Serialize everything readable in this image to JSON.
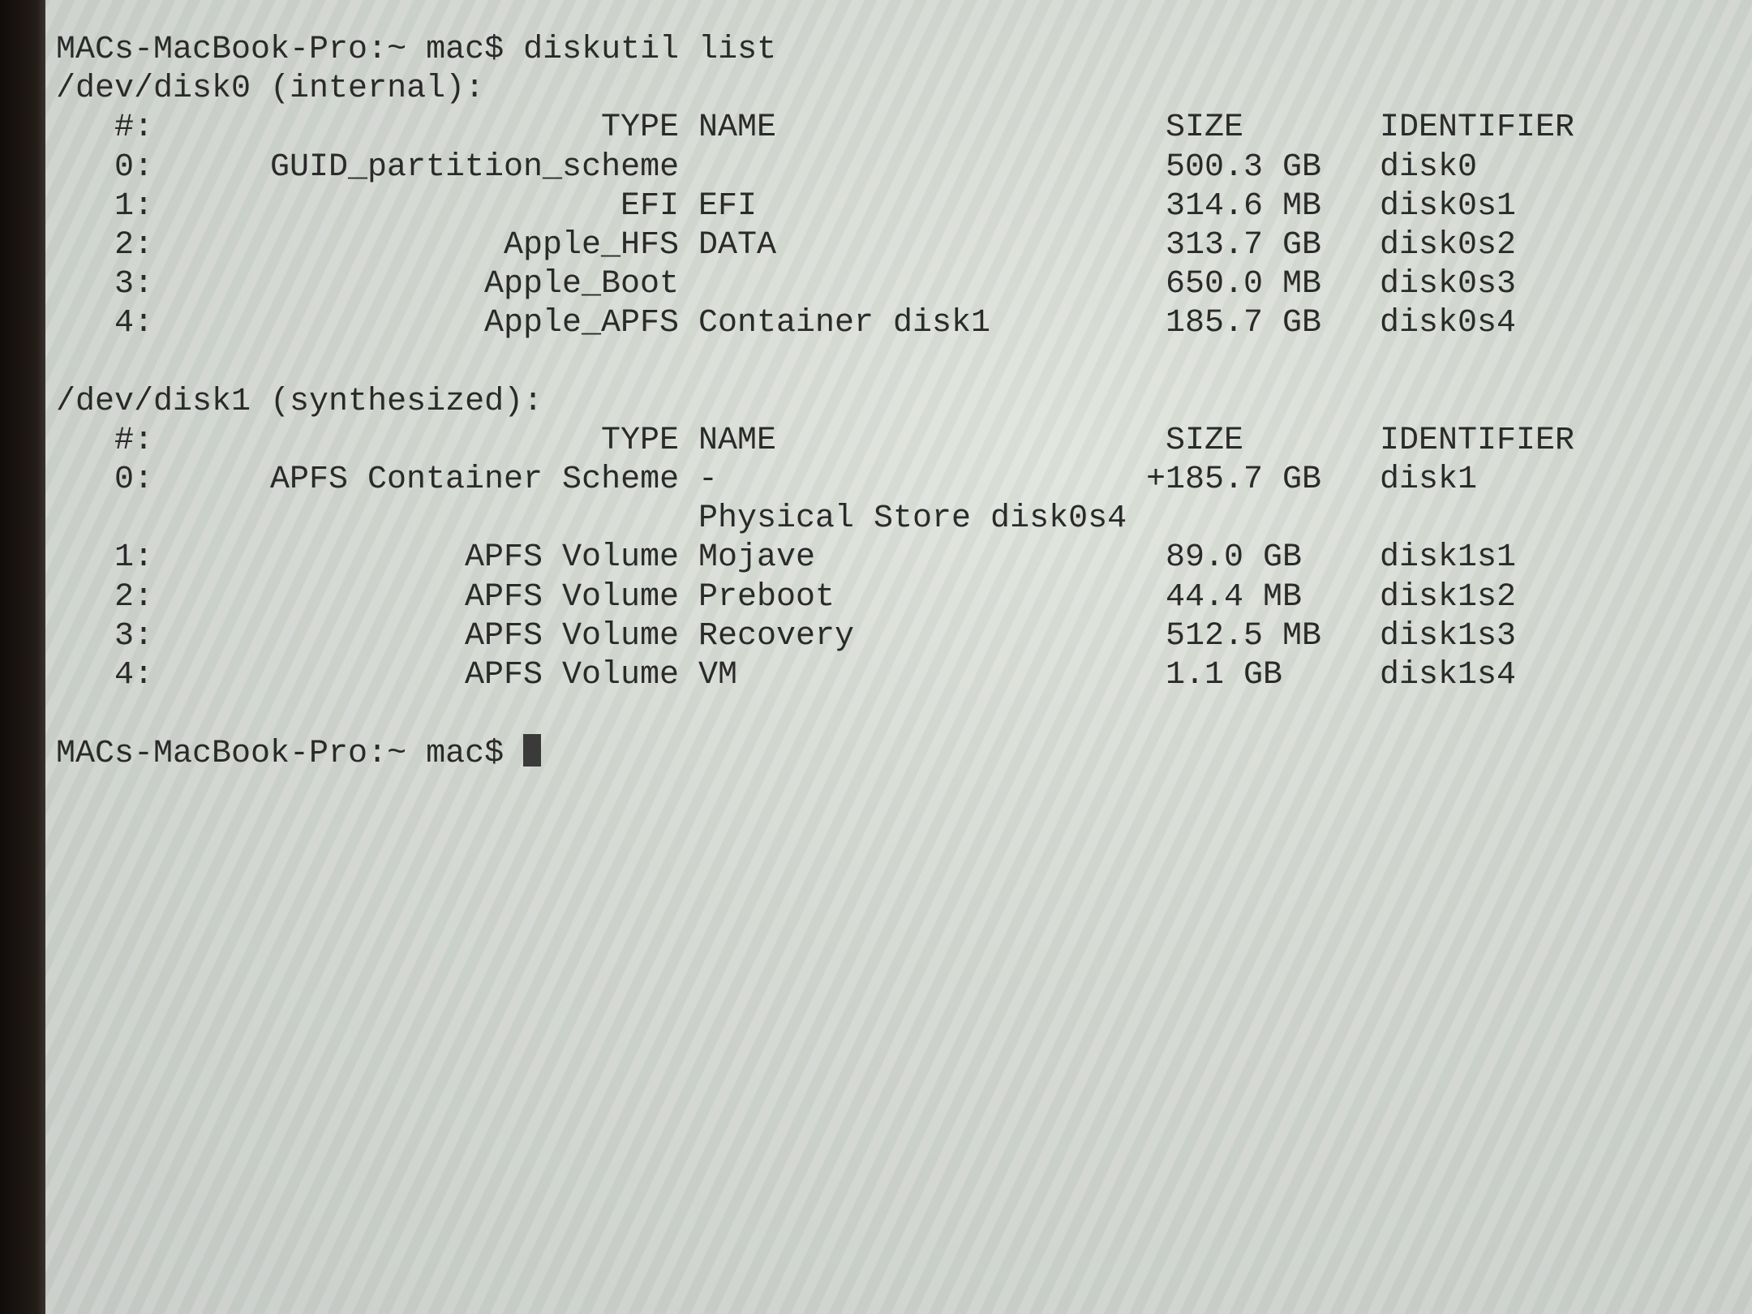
{
  "terminal": {
    "prompt": "MACs-MacBook-Pro:~ mac$",
    "command": "diskutil list",
    "columns": {
      "num": "#:",
      "type": "TYPE",
      "name": "NAME",
      "size": "SIZE",
      "identifier": "IDENTIFIER"
    },
    "disks": [
      {
        "header": "/dev/disk0 (internal):",
        "rows": [
          {
            "num": "0:",
            "type": "GUID_partition_scheme",
            "name": "",
            "size": "500.3 GB",
            "identifier": "disk0"
          },
          {
            "num": "1:",
            "type": "EFI",
            "name": "EFI",
            "size": "314.6 MB",
            "identifier": "disk0s1"
          },
          {
            "num": "2:",
            "type": "Apple_HFS",
            "name": "DATA",
            "size": "313.7 GB",
            "identifier": "disk0s2"
          },
          {
            "num": "3:",
            "type": "Apple_Boot",
            "name": "",
            "size": "650.0 MB",
            "identifier": "disk0s3"
          },
          {
            "num": "4:",
            "type": "Apple_APFS",
            "name": "Container disk1",
            "size": "185.7 GB",
            "identifier": "disk0s4"
          }
        ]
      },
      {
        "header": "/dev/disk1 (synthesized):",
        "rows": [
          {
            "num": "0:",
            "type": "APFS Container Scheme",
            "name": "-",
            "size": "+185.7 GB",
            "identifier": "disk1",
            "continuation": "Physical Store disk0s4"
          },
          {
            "num": "1:",
            "type": "APFS Volume",
            "name": "Mojave",
            "size": "89.0 GB",
            "identifier": "disk1s1"
          },
          {
            "num": "2:",
            "type": "APFS Volume",
            "name": "Preboot",
            "size": "44.4 MB",
            "identifier": "disk1s2"
          },
          {
            "num": "3:",
            "type": "APFS Volume",
            "name": "Recovery",
            "size": "512.5 MB",
            "identifier": "disk1s3"
          },
          {
            "num": "4:",
            "type": "APFS Volume",
            "name": "VM",
            "size": "1.1 GB",
            "identifier": "disk1s4"
          }
        ]
      }
    ]
  }
}
